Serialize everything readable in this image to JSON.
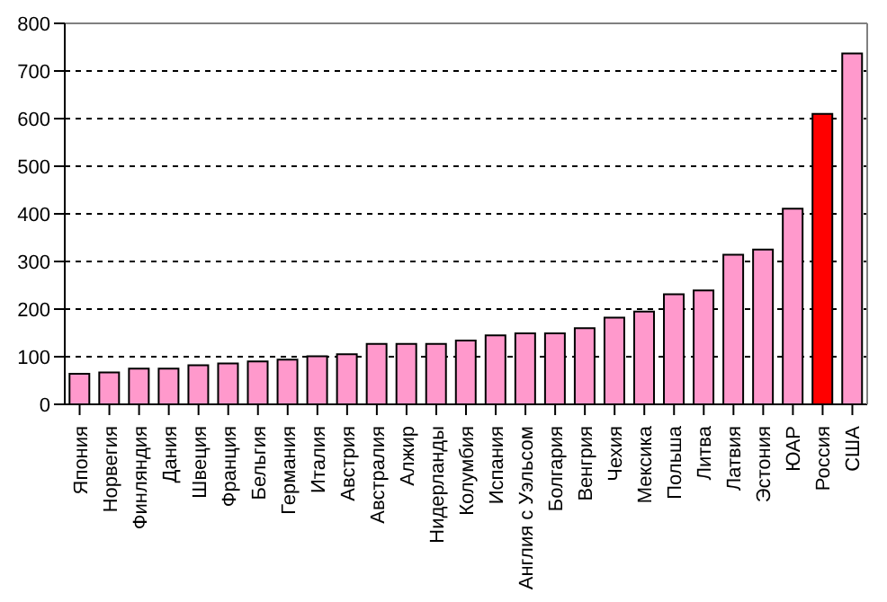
{
  "chart_data": {
    "type": "bar",
    "categories": [
      "Япония",
      "Норвегия",
      "Финляндия",
      "Дания",
      "Швеция",
      "Франция",
      "Бельгия",
      "Германия",
      "Италия",
      "Австрия",
      "Австралия",
      "Алжир",
      "Нидерланды",
      "Колумбия",
      "Испания",
      "Англия с Уэльсом",
      "Болгария",
      "Венгрия",
      "Чехия",
      "Мексика",
      "Польша",
      "Литва",
      "Латвия",
      "Эстония",
      "ЮАР",
      "Россия",
      "США"
    ],
    "values": [
      64,
      67,
      75,
      75,
      82,
      86,
      90,
      94,
      101,
      105,
      127,
      127,
      127,
      134,
      145,
      149,
      149,
      160,
      182,
      195,
      231,
      239,
      314,
      325,
      411,
      610,
      737
    ],
    "colors": [
      "#ff99cc",
      "#ff99cc",
      "#ff99cc",
      "#ff99cc",
      "#ff99cc",
      "#ff99cc",
      "#ff99cc",
      "#ff99cc",
      "#ff99cc",
      "#ff99cc",
      "#ff99cc",
      "#ff99cc",
      "#ff99cc",
      "#ff99cc",
      "#ff99cc",
      "#ff99cc",
      "#ff99cc",
      "#ff99cc",
      "#ff99cc",
      "#ff99cc",
      "#ff99cc",
      "#ff99cc",
      "#ff99cc",
      "#ff99cc",
      "#ff99cc",
      "#ff0000",
      "#ff99cc"
    ],
    "ylim": [
      0,
      800
    ],
    "yticks": [
      0,
      100,
      200,
      300,
      400,
      500,
      600,
      700,
      800
    ],
    "grid": "y"
  }
}
